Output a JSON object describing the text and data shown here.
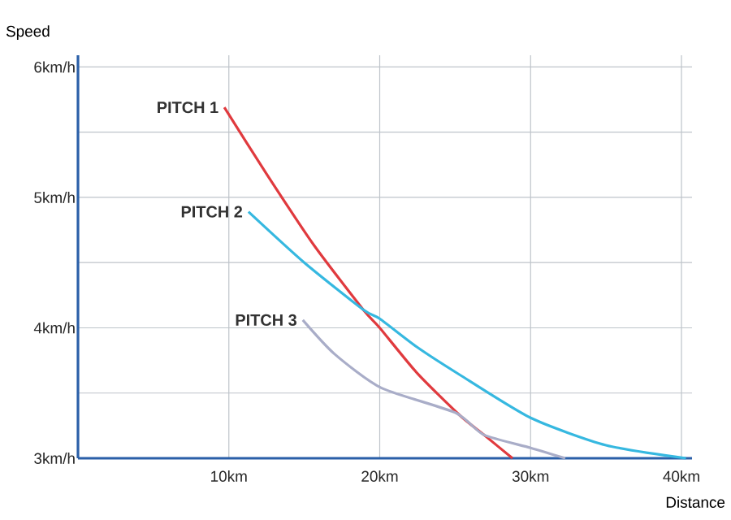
{
  "chart_data": {
    "type": "line",
    "xlabel": "Distance",
    "ylabel": "Speed",
    "xlim": [
      0,
      40.7
    ],
    "ylim": [
      3,
      6.09
    ],
    "xticks": [
      {
        "value": 10,
        "label": "10km"
      },
      {
        "value": 20,
        "label": "20km"
      },
      {
        "value": 30,
        "label": "30km"
      },
      {
        "value": 40,
        "label": "40km"
      }
    ],
    "yticks": [
      {
        "value": 3,
        "label": "3km/h"
      },
      {
        "value": 3.5,
        "label": null
      },
      {
        "value": 4,
        "label": "4km/h"
      },
      {
        "value": 4.5,
        "label": null
      },
      {
        "value": 5,
        "label": "5km/h"
      },
      {
        "value": 5.5,
        "label": null
      },
      {
        "value": 6,
        "label": "6km/h"
      }
    ],
    "grid": true,
    "legend": false,
    "marker": "none",
    "line_style": "solid",
    "series": [
      {
        "name": "PITCH 1",
        "color": "#e03a3e",
        "x": [
          9.7,
          12.5,
          15.6,
          18.9,
          20,
          22.5,
          25.3,
          26.9,
          28.8
        ],
        "values": [
          5.69,
          5.18,
          4.64,
          4.14,
          4.0,
          3.65,
          3.33,
          3.18,
          3.0
        ]
      },
      {
        "name": "PITCH 2",
        "color": "#36b8e0",
        "x": [
          11.3,
          15,
          18.9,
          20,
          22.5,
          25.3,
          30,
          35,
          40.3
        ],
        "values": [
          4.89,
          4.5,
          4.14,
          4.07,
          3.85,
          3.64,
          3.31,
          3.1,
          3.0
        ]
      },
      {
        "name": "PITCH 3",
        "color": "#a9adc8",
        "x": [
          14.9,
          17,
          20.1,
          25,
          26.9,
          30,
          32.3
        ],
        "values": [
          4.06,
          3.8,
          3.54,
          3.35,
          3.18,
          3.08,
          3.0
        ]
      }
    ]
  }
}
